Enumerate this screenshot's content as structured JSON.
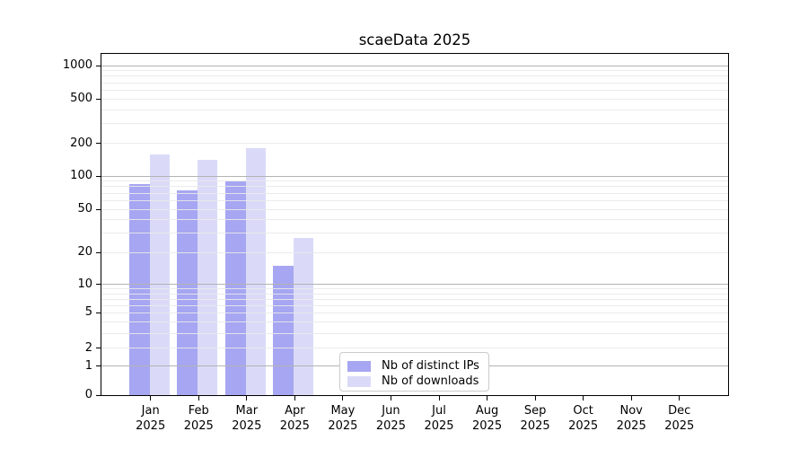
{
  "title": "scaeData 2025",
  "chart_data": {
    "type": "bar",
    "title": "scaeData 2025",
    "categories": [
      "Jan 2025",
      "Feb 2025",
      "Mar 2025",
      "Apr 2025",
      "May 2025",
      "Jun 2025",
      "Jul 2025",
      "Aug 2025",
      "Sep 2025",
      "Oct 2025",
      "Nov 2025",
      "Dec 2025"
    ],
    "series": [
      {
        "name": "Nb of distinct IPs",
        "color": "#a6a6f2",
        "values": [
          85,
          74,
          90,
          15,
          null,
          null,
          null,
          null,
          null,
          null,
          null,
          null
        ]
      },
      {
        "name": "Nb of downloads",
        "color": "#dadaf8",
        "values": [
          157,
          140,
          180,
          27,
          null,
          null,
          null,
          null,
          null,
          null,
          null,
          null
        ]
      }
    ],
    "xlabel": "",
    "ylabel": "",
    "yscale": "log1p",
    "ylim": [
      0,
      1300
    ],
    "ytick_values": [
      0,
      1,
      2,
      5,
      10,
      20,
      50,
      100,
      200,
      500,
      1000
    ],
    "ytick_labels": [
      "0",
      "1",
      "2",
      "5",
      "10",
      "20",
      "50",
      "100",
      "200",
      "500",
      "1000"
    ],
    "minor_grid_values": [
      2,
      3,
      4,
      5,
      6,
      7,
      8,
      9,
      20,
      30,
      40,
      50,
      60,
      70,
      80,
      90,
      200,
      300,
      400,
      500,
      600,
      700,
      800,
      900
    ],
    "major_grid_values": [
      1,
      10,
      100,
      1000
    ],
    "grid": "horizontal",
    "legend_position": "lower center"
  },
  "colors": {
    "background": "#ffffff",
    "spine": "#000000",
    "major_grid": "#b3b3b3",
    "minor_grid": "#e9e9e9",
    "text": "#000000",
    "legend_border": "#cbcbcb"
  }
}
